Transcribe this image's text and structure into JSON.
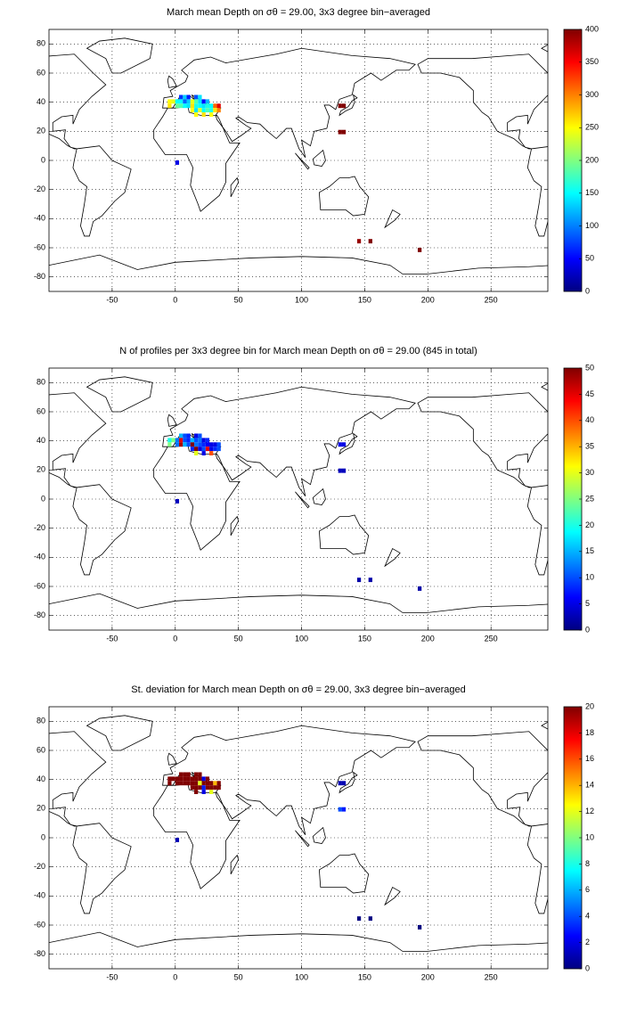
{
  "chart_data": [
    {
      "type": "heatmap",
      "title": "March mean Depth on σθ = 29.00, 3x3 degree bin−averaged",
      "x": [
        4.5,
        7.5,
        10.5,
        16.5,
        19.5,
        -4.5,
        -1.5,
        1.5,
        4.5,
        7.5,
        10.5,
        13.5,
        16.5,
        19.5,
        22.5,
        25.5,
        -4.5,
        1.5,
        4.5,
        7.5,
        10.5,
        13.5,
        16.5,
        19.5,
        22.5,
        25.5,
        28.5,
        31.5,
        34.5,
        13.5,
        16.5,
        19.5,
        22.5,
        25.5,
        28.5,
        31.5,
        34.5,
        16.5,
        22.5,
        28.5,
        130.5,
        133.5,
        130.5,
        133.5,
        1.5,
        145.5,
        154.5,
        193.5
      ],
      "y": [
        43.5,
        43.5,
        43.5,
        43.5,
        43.5,
        40.5,
        40.5,
        40.5,
        40.5,
        40.5,
        40.5,
        40.5,
        40.5,
        40.5,
        40.5,
        40.5,
        37.5,
        37.5,
        37.5,
        37.5,
        37.5,
        37.5,
        37.5,
        37.5,
        37.5,
        37.5,
        37.5,
        37.5,
        37.5,
        34.5,
        34.5,
        34.5,
        34.5,
        34.5,
        34.5,
        34.5,
        34.5,
        31.5,
        31.5,
        31.5,
        37.5,
        37.5,
        19.5,
        19.5,
        -1.5,
        -55.5,
        -55.5,
        -61.5
      ],
      "values": [
        70,
        130,
        60,
        80,
        140,
        250,
        240,
        150,
        150,
        90,
        130,
        240,
        180,
        140,
        50,
        120,
        260,
        190,
        180,
        150,
        140,
        260,
        160,
        150,
        140,
        160,
        150,
        310,
        360,
        250,
        140,
        240,
        150,
        180,
        160,
        260,
        300,
        250,
        260,
        250,
        400,
        400,
        400,
        400,
        40,
        390,
        400,
        400
      ],
      "xlim": [
        -100,
        295
      ],
      "ylim": [
        -90,
        90
      ],
      "xticks": [
        -50,
        0,
        50,
        100,
        150,
        200,
        250
      ],
      "yticks": [
        -80,
        -60,
        -40,
        -20,
        0,
        20,
        40,
        60,
        80
      ],
      "grid": true,
      "colormap": "jet",
      "clim": [
        0,
        400
      ],
      "cticks": [
        0,
        50,
        100,
        150,
        200,
        250,
        300,
        350,
        400
      ]
    },
    {
      "type": "heatmap",
      "title": "N of profiles per 3x3 degree bin for March mean Depth on σθ = 29.00 (845 in total)",
      "x": [
        4.5,
        7.5,
        10.5,
        16.5,
        19.5,
        -4.5,
        -1.5,
        1.5,
        4.5,
        7.5,
        10.5,
        13.5,
        16.5,
        19.5,
        22.5,
        25.5,
        -4.5,
        1.5,
        4.5,
        7.5,
        10.5,
        13.5,
        16.5,
        19.5,
        22.5,
        25.5,
        28.5,
        31.5,
        34.5,
        13.5,
        16.5,
        19.5,
        22.5,
        25.5,
        28.5,
        31.5,
        34.5,
        16.5,
        22.5,
        28.5,
        130.5,
        133.5,
        130.5,
        133.5,
        1.5,
        145.5,
        154.5,
        193.5
      ],
      "y": [
        43.5,
        43.5,
        43.5,
        43.5,
        43.5,
        40.5,
        40.5,
        40.5,
        40.5,
        40.5,
        40.5,
        40.5,
        40.5,
        40.5,
        40.5,
        40.5,
        37.5,
        37.5,
        37.5,
        37.5,
        37.5,
        37.5,
        37.5,
        37.5,
        37.5,
        37.5,
        37.5,
        37.5,
        37.5,
        34.5,
        34.5,
        34.5,
        34.5,
        34.5,
        34.5,
        34.5,
        34.5,
        31.5,
        31.5,
        31.5,
        37.5,
        37.5,
        19.5,
        19.5,
        -1.5,
        -55.5,
        -55.5,
        -61.5
      ],
      "values": [
        15,
        10,
        8,
        5,
        10,
        20,
        25,
        12,
        45,
        10,
        8,
        15,
        10,
        12,
        5,
        8,
        25,
        12,
        48,
        15,
        10,
        50,
        12,
        10,
        8,
        6,
        5,
        5,
        10,
        8,
        50,
        5,
        10,
        45,
        5,
        8,
        10,
        30,
        5,
        40,
        5,
        5,
        3,
        3,
        3,
        2,
        2,
        2
      ],
      "xlim": [
        -100,
        295
      ],
      "ylim": [
        -90,
        90
      ],
      "xticks": [
        -50,
        0,
        50,
        100,
        150,
        200,
        250
      ],
      "yticks": [
        -80,
        -60,
        -40,
        -20,
        0,
        20,
        40,
        60,
        80
      ],
      "grid": true,
      "colormap": "jet",
      "clim": [
        0,
        50
      ],
      "cticks": [
        0,
        5,
        10,
        15,
        20,
        25,
        30,
        35,
        40,
        45,
        50
      ]
    },
    {
      "type": "heatmap",
      "title": "St. deviation for March mean Depth on σθ = 29.00, 3x3 degree bin−averaged",
      "x": [
        4.5,
        7.5,
        10.5,
        16.5,
        19.5,
        -4.5,
        -1.5,
        1.5,
        4.5,
        7.5,
        10.5,
        13.5,
        16.5,
        19.5,
        22.5,
        25.5,
        -4.5,
        1.5,
        4.5,
        7.5,
        10.5,
        13.5,
        16.5,
        19.5,
        22.5,
        25.5,
        28.5,
        31.5,
        34.5,
        13.5,
        16.5,
        19.5,
        22.5,
        25.5,
        28.5,
        31.5,
        34.5,
        16.5,
        22.5,
        28.5,
        130.5,
        133.5,
        130.5,
        133.5,
        1.5,
        145.5,
        154.5,
        193.5
      ],
      "y": [
        43.5,
        43.5,
        43.5,
        43.5,
        43.5,
        40.5,
        40.5,
        40.5,
        40.5,
        40.5,
        40.5,
        40.5,
        40.5,
        40.5,
        40.5,
        40.5,
        37.5,
        37.5,
        37.5,
        37.5,
        37.5,
        37.5,
        37.5,
        37.5,
        37.5,
        37.5,
        37.5,
        37.5,
        37.5,
        34.5,
        34.5,
        34.5,
        34.5,
        34.5,
        34.5,
        34.5,
        34.5,
        31.5,
        31.5,
        31.5,
        37.5,
        37.5,
        19.5,
        19.5,
        -1.5,
        -55.5,
        -55.5,
        -61.5
      ],
      "values": [
        20,
        20,
        20,
        20,
        20,
        20,
        20,
        20,
        20,
        20,
        20,
        20,
        20,
        20,
        2,
        20,
        20,
        20,
        20,
        20,
        20,
        20,
        20,
        12,
        20,
        20,
        20,
        14,
        20,
        20,
        20,
        20,
        3,
        20,
        20,
        20,
        20,
        20,
        2,
        12,
        1,
        1,
        4,
        3,
        1,
        0,
        0,
        0
      ],
      "xlim": [
        -100,
        295
      ],
      "ylim": [
        -90,
        90
      ],
      "xticks": [
        -50,
        0,
        50,
        100,
        150,
        200,
        250
      ],
      "yticks": [
        -80,
        -60,
        -40,
        -20,
        0,
        20,
        40,
        60,
        80
      ],
      "grid": true,
      "colormap": "jet",
      "clim": [
        0,
        20
      ],
      "cticks": [
        0,
        2,
        4,
        6,
        8,
        10,
        12,
        14,
        16,
        18,
        20
      ]
    }
  ]
}
